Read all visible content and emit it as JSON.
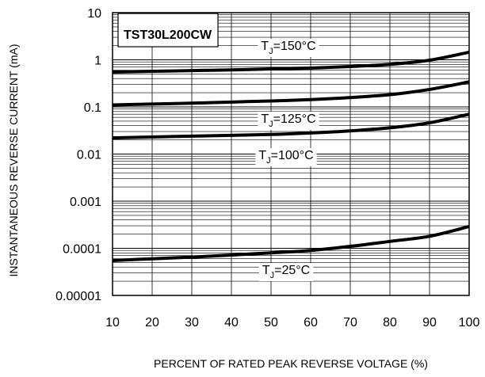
{
  "chart_data": {
    "type": "line",
    "title": "",
    "part_number": "TST30L200CW",
    "xlabel": "PERCENT OF RATED PEAK REVERSE VOLTAGE (%)",
    "ylabel": "INSTANTANEOUS REVERSE CURRENT (mA)",
    "x_scale": "linear",
    "y_scale": "log",
    "xlim": [
      10,
      100
    ],
    "ylim": [
      1e-05,
      10
    ],
    "grid": true,
    "x_ticks": [
      "10",
      "20",
      "30",
      "40",
      "50",
      "60",
      "70",
      "80",
      "90",
      "100"
    ],
    "y_ticks": [
      "10",
      "1",
      "0.1",
      "0.01",
      "0.001",
      "0.0001",
      "0.00001"
    ],
    "series": [
      {
        "name": "TJ=150°C",
        "label": {
          "prefix": "T",
          "sub": "J",
          "suffix": "=150°C"
        },
        "x": [
          10,
          20,
          30,
          40,
          50,
          60,
          70,
          80,
          90,
          100
        ],
        "y": [
          0.55,
          0.57,
          0.59,
          0.61,
          0.64,
          0.67,
          0.72,
          0.8,
          0.98,
          1.45
        ]
      },
      {
        "name": "TJ=125°C",
        "label": {
          "prefix": "T",
          "sub": "J",
          "suffix": "=125°C"
        },
        "x": [
          10,
          20,
          30,
          40,
          50,
          60,
          70,
          80,
          90,
          100
        ],
        "y": [
          0.11,
          0.115,
          0.12,
          0.127,
          0.134,
          0.143,
          0.158,
          0.182,
          0.235,
          0.34
        ]
      },
      {
        "name": "TJ=100°C",
        "label": {
          "prefix": "T",
          "sub": "J",
          "suffix": "=100°C"
        },
        "x": [
          10,
          20,
          30,
          40,
          50,
          60,
          70,
          80,
          90,
          100
        ],
        "y": [
          0.022,
          0.023,
          0.024,
          0.025,
          0.026,
          0.028,
          0.031,
          0.036,
          0.046,
          0.07
        ]
      },
      {
        "name": "TJ=25°C",
        "label": {
          "prefix": "T",
          "sub": "J",
          "suffix": "=25°C"
        },
        "x": [
          10,
          20,
          30,
          40,
          50,
          60,
          70,
          80,
          90,
          100
        ],
        "y": [
          5.5e-05,
          6e-05,
          6.5e-05,
          7.2e-05,
          8e-05,
          9e-05,
          0.00011,
          0.00014,
          0.00018,
          0.00029
        ]
      }
    ]
  }
}
